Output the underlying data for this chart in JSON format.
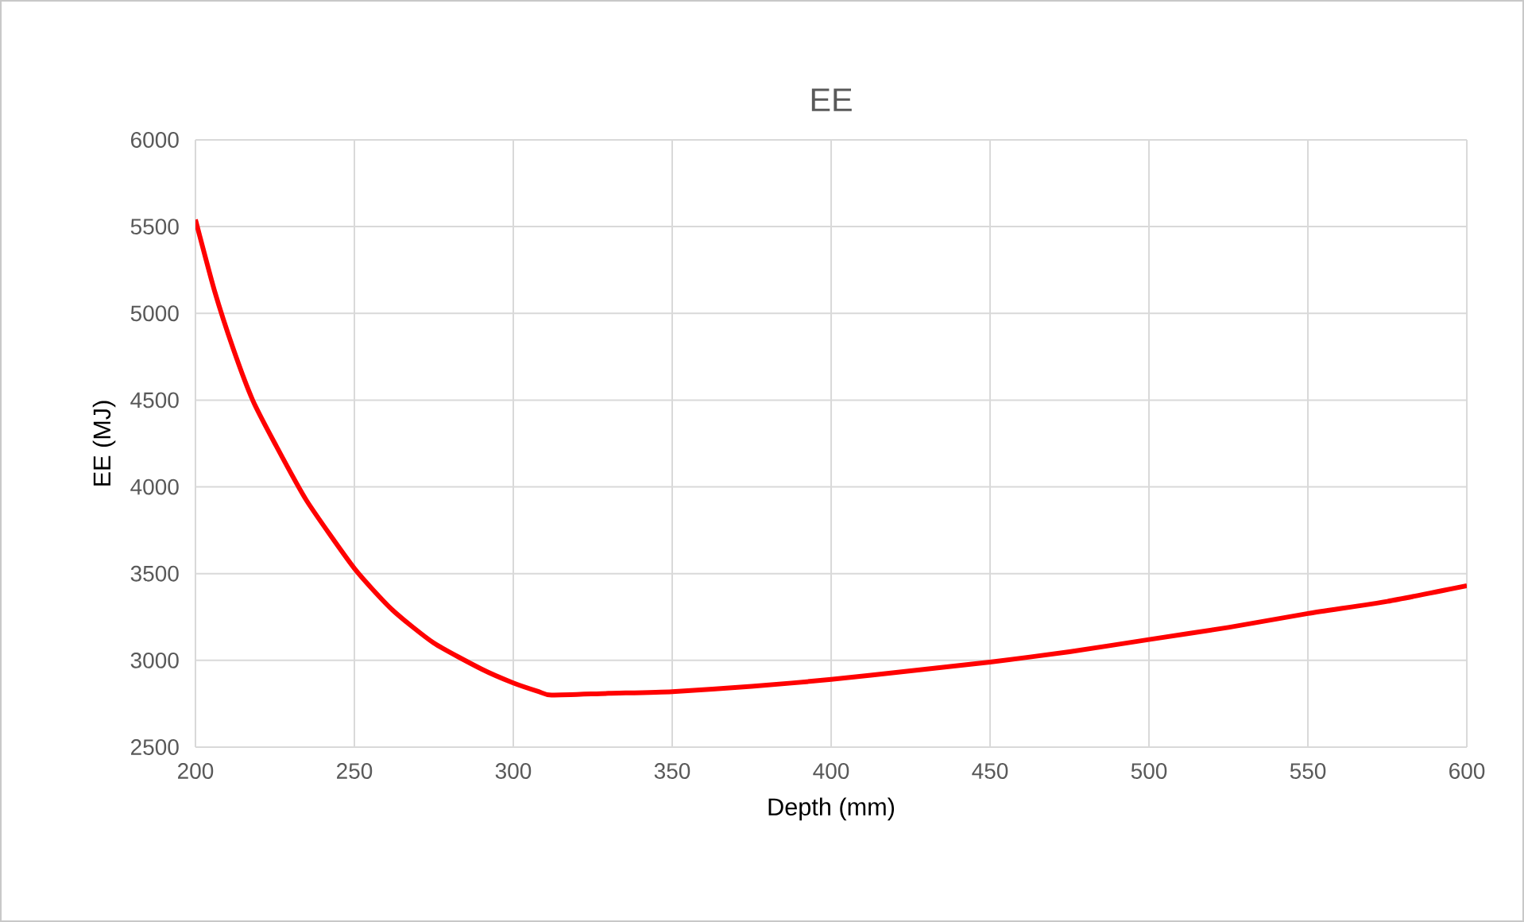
{
  "chart_data": {
    "type": "line",
    "title": "EE",
    "xlabel": "Depth (mm)",
    "ylabel": "EE (MJ)",
    "x": [
      200,
      206,
      212,
      218,
      225,
      235,
      250,
      262,
      275,
      290,
      300,
      308,
      312,
      330,
      350,
      375,
      400,
      425,
      450,
      475,
      500,
      525,
      550,
      575,
      600
    ],
    "series": [
      {
        "color": "#ff0000",
        "values": [
          5540,
          5130,
          4790,
          4500,
          4250,
          3920,
          3530,
          3290,
          3100,
          2950,
          2870,
          2820,
          2800,
          2810,
          2820,
          2850,
          2890,
          2940,
          2990,
          3050,
          3120,
          3190,
          3270,
          3340,
          3430
        ]
      }
    ],
    "xlim": [
      200,
      600
    ],
    "ylim": [
      2500,
      6000
    ],
    "xticks": [
      200,
      250,
      300,
      350,
      400,
      450,
      500,
      550,
      600
    ],
    "yticks": [
      2500,
      3000,
      3500,
      4000,
      4500,
      5000,
      5500,
      6000
    ],
    "grid": true,
    "marker": "none",
    "line_style": "solid"
  }
}
